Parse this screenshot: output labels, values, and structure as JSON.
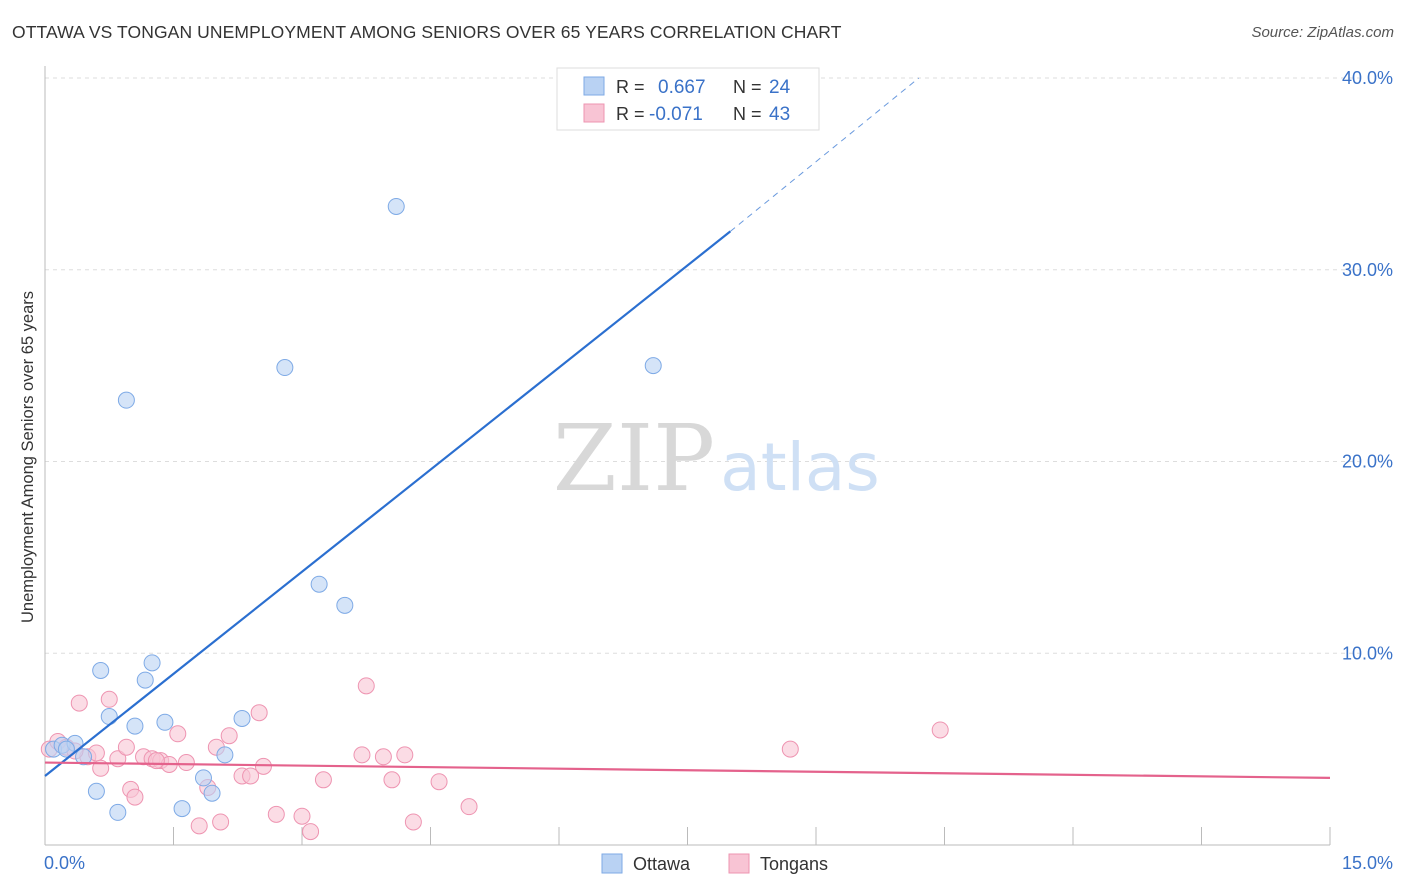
{
  "title": "OTTAWA VS TONGAN UNEMPLOYMENT AMONG SENIORS OVER 65 YEARS CORRELATION CHART",
  "source": "Source: ZipAtlas.com",
  "watermark": {
    "zip": "ZIP",
    "atlas": "atlas"
  },
  "colors": {
    "ottawa_fill": "#b9d2f3",
    "ottawa_stroke": "#7eaae6",
    "ottawa_line": "#2b6fd0",
    "tongans_fill": "#f8c4d4",
    "tongans_stroke": "#ee94b1",
    "tongans_line": "#e4628c",
    "axis_text": "#3a72c8",
    "grid": "#dddddd"
  },
  "legend_box": {
    "rows": [
      {
        "r_label": "R =",
        "r_value": "0.667",
        "n_label": "N =",
        "n_value": "24"
      },
      {
        "r_label": "R =",
        "r_value": "-0.071",
        "n_label": "N =",
        "n_value": "43"
      }
    ]
  },
  "chart_data": {
    "type": "scatter",
    "title": "OTTAWA VS TONGAN UNEMPLOYMENT AMONG SENIORS OVER 65 YEARS CORRELATION CHART",
    "xlabel": "",
    "ylabel": "Unemployment Among Seniors over 65 years",
    "xlim": [
      0,
      15
    ],
    "ylim": [
      0,
      40
    ],
    "x_tick_labels": [
      "0.0%",
      "15.0%"
    ],
    "y_ticks": [
      10,
      20,
      30,
      40
    ],
    "y_tick_labels": [
      "10.0%",
      "20.0%",
      "30.0%",
      "40.0%"
    ],
    "grid": true,
    "legend": [
      "Ottawa",
      "Tongans"
    ],
    "series": [
      {
        "name": "Ottawa",
        "r": 0.667,
        "n": 24,
        "points": [
          [
            0.1,
            5.0
          ],
          [
            0.2,
            5.2
          ],
          [
            0.35,
            5.3
          ],
          [
            0.45,
            4.6
          ],
          [
            0.6,
            2.8
          ],
          [
            0.65,
            9.1
          ],
          [
            0.75,
            6.7
          ],
          [
            0.85,
            1.7
          ],
          [
            0.95,
            23.2
          ],
          [
            1.05,
            6.2
          ],
          [
            1.17,
            8.6
          ],
          [
            1.25,
            9.5
          ],
          [
            1.4,
            6.4
          ],
          [
            1.6,
            1.9
          ],
          [
            1.85,
            3.5
          ],
          [
            1.95,
            2.7
          ],
          [
            2.1,
            4.7
          ],
          [
            2.3,
            6.6
          ],
          [
            2.8,
            24.9
          ],
          [
            3.2,
            13.6
          ],
          [
            3.5,
            12.5
          ],
          [
            4.1,
            33.3
          ],
          [
            7.1,
            25.0
          ],
          [
            0.25,
            5.0
          ]
        ],
        "trend": {
          "x": [
            0,
            8.0
          ],
          "y": [
            3.6,
            32.0
          ],
          "dashed_to": [
            10.2,
            40.0
          ]
        }
      },
      {
        "name": "Tongans",
        "r": -0.071,
        "n": 43,
        "points": [
          [
            0.05,
            5.0
          ],
          [
            0.15,
            5.4
          ],
          [
            0.25,
            5.1
          ],
          [
            0.4,
            7.4
          ],
          [
            0.5,
            4.6
          ],
          [
            0.6,
            4.8
          ],
          [
            0.65,
            4.0
          ],
          [
            0.75,
            7.6
          ],
          [
            0.85,
            4.5
          ],
          [
            0.95,
            5.1
          ],
          [
            1.0,
            2.9
          ],
          [
            1.05,
            2.5
          ],
          [
            1.15,
            4.6
          ],
          [
            1.25,
            4.5
          ],
          [
            1.35,
            4.4
          ],
          [
            1.45,
            4.2
          ],
          [
            1.55,
            5.8
          ],
          [
            1.65,
            4.3
          ],
          [
            1.8,
            1.0
          ],
          [
            1.9,
            3.0
          ],
          [
            2.0,
            5.1
          ],
          [
            2.05,
            1.2
          ],
          [
            2.15,
            5.7
          ],
          [
            2.3,
            3.6
          ],
          [
            2.4,
            3.6
          ],
          [
            2.5,
            6.9
          ],
          [
            2.55,
            4.1
          ],
          [
            2.7,
            1.6
          ],
          [
            3.0,
            1.5
          ],
          [
            3.1,
            0.7
          ],
          [
            3.25,
            3.4
          ],
          [
            3.7,
            4.7
          ],
          [
            3.75,
            8.3
          ],
          [
            3.95,
            4.6
          ],
          [
            4.05,
            3.4
          ],
          [
            4.2,
            4.7
          ],
          [
            4.3,
            1.2
          ],
          [
            4.6,
            3.3
          ],
          [
            4.95,
            2.0
          ],
          [
            8.7,
            5.0
          ],
          [
            10.45,
            6.0
          ],
          [
            0.35,
            4.9
          ],
          [
            1.3,
            4.4
          ]
        ],
        "trend": {
          "x": [
            0,
            15.0
          ],
          "y": [
            4.3,
            3.5
          ]
        }
      }
    ]
  }
}
